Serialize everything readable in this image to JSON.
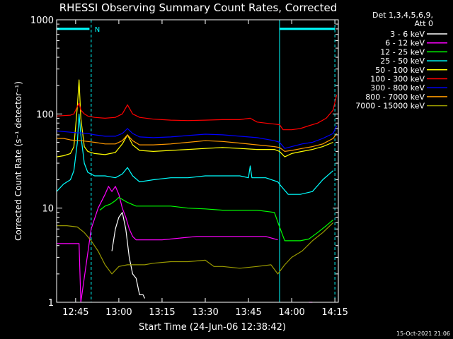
{
  "chart_data": {
    "type": "line",
    "title": "RHESSI Observing Summary Count Rates, Corrected",
    "xlabel": "Start Time (24-Jun-06 12:38:42)",
    "ylabel": "Corrected Count Rate (s⁻¹ detector⁻¹)",
    "footer": "15-Oct-2021 21:06",
    "yscale": "log",
    "ylim": [
      1,
      1000
    ],
    "y_ticks": [
      {
        "v": 1,
        "label": "1"
      },
      {
        "v": 10,
        "label": "10"
      },
      {
        "v": 100,
        "label": "100"
      },
      {
        "v": 1000,
        "label": "1000"
      }
    ],
    "xlim": [
      12.64,
      14.27
    ],
    "x_ticks": [
      {
        "v": 12.75,
        "label": "12:45"
      },
      {
        "v": 13.0,
        "label": "13:00"
      },
      {
        "v": 13.25,
        "label": "13:15"
      },
      {
        "v": 13.5,
        "label": "13:30"
      },
      {
        "v": 13.75,
        "label": "13:45"
      },
      {
        "v": 14.0,
        "label": "14:00"
      },
      {
        "v": 14.25,
        "label": "14:15"
      }
    ],
    "legend_header": [
      "Det 1,3,4,5,6,9,",
      "Att 0"
    ],
    "legend_placement": "right",
    "markers": {
      "dashed_verticals": [
        12.84,
        14.25
      ],
      "solid_verticals": [
        12.64,
        13.93
      ],
      "bar_segments": [
        [
          12.64,
          12.83
        ],
        [
          13.93,
          14.25
        ]
      ],
      "bar_level": 800,
      "bar_label": "N",
      "bar_label_x": 12.86
    },
    "series": [
      {
        "name": "3 - 6 keV",
        "color": "#ffffff",
        "x": [
          12.96,
          12.98,
          13.0,
          13.02,
          13.04,
          13.06,
          13.08,
          13.1,
          13.12,
          13.14,
          13.15
        ],
        "y": [
          3.5,
          6,
          8,
          9,
          6,
          3,
          2,
          1.8,
          1.2,
          1.2,
          1.1
        ]
      },
      {
        "name": "6 - 12 keV",
        "color": "#ff00ff",
        "x": [
          12.64,
          12.72,
          12.77,
          12.78,
          12.84,
          12.88,
          12.92,
          12.94,
          12.96,
          12.98,
          13.0,
          13.02,
          13.04,
          13.06,
          13.08,
          13.1,
          13.15,
          13.25,
          13.35,
          13.45,
          13.55,
          13.65,
          13.75,
          13.85,
          13.92,
          14.0,
          14.1,
          14.12
        ],
        "y": [
          4.2,
          4.2,
          4.2,
          1.0,
          6,
          10,
          14,
          17,
          15,
          17,
          14,
          10,
          8,
          6,
          5,
          4.6,
          4.6,
          4.6,
          4.8,
          5,
          5,
          5,
          5,
          5,
          4.6,
          null,
          1.0,
          1.0
        ]
      },
      {
        "name": "12 - 25 keV",
        "color": "#00ff00",
        "x": [
          12.89,
          12.92,
          12.95,
          12.98,
          13.0,
          13.05,
          13.1,
          13.2,
          13.3,
          13.4,
          13.5,
          13.6,
          13.7,
          13.8,
          13.9,
          13.93,
          13.96,
          14.0,
          14.05,
          14.1,
          14.15,
          14.2,
          14.24
        ],
        "y": [
          9.5,
          10.5,
          11,
          12,
          13,
          11.5,
          10.5,
          10.5,
          10.5,
          10,
          9.8,
          9.5,
          9.5,
          9.5,
          9,
          6.3,
          4.5,
          4.5,
          4.5,
          4.7,
          5.5,
          6.5,
          7.5
        ]
      },
      {
        "name": "25 - 50 keV",
        "color": "#00ffff",
        "x": [
          12.64,
          12.68,
          12.72,
          12.74,
          12.76,
          12.77,
          12.78,
          12.8,
          12.82,
          12.86,
          12.92,
          12.98,
          13.02,
          13.05,
          13.08,
          13.12,
          13.2,
          13.3,
          13.4,
          13.5,
          13.6,
          13.7,
          13.75,
          13.76,
          13.77,
          13.85,
          13.92,
          13.94,
          13.98,
          14.05,
          14.12,
          14.18,
          14.24
        ],
        "y": [
          15,
          18,
          20,
          25,
          50,
          100,
          60,
          30,
          24,
          22,
          22,
          21,
          23,
          27,
          22,
          19,
          20,
          21,
          21,
          22,
          22,
          22,
          21,
          28,
          21,
          21,
          19,
          17,
          14,
          14,
          15,
          20,
          25
        ]
      },
      {
        "name": "50 - 100 keV",
        "color": "#ffff00",
        "x": [
          12.64,
          12.68,
          12.72,
          12.74,
          12.76,
          12.77,
          12.78,
          12.8,
          12.82,
          12.86,
          12.92,
          12.98,
          13.02,
          13.05,
          13.08,
          13.12,
          13.2,
          13.3,
          13.4,
          13.5,
          13.6,
          13.7,
          13.8,
          13.9,
          13.93,
          13.96,
          14.0,
          14.06,
          14.12,
          14.18,
          14.24
        ],
        "y": [
          35,
          36,
          38,
          45,
          120,
          230,
          90,
          45,
          40,
          38,
          37,
          39,
          48,
          60,
          47,
          41,
          40,
          41,
          42,
          43,
          44,
          43,
          42,
          42,
          40,
          35,
          38,
          40,
          42,
          45,
          50
        ]
      },
      {
        "name": "100 - 300 keV",
        "color": "#ff0000",
        "x": [
          12.64,
          12.68,
          12.72,
          12.74,
          12.76,
          12.77,
          12.78,
          12.8,
          12.82,
          12.86,
          12.92,
          12.98,
          13.02,
          13.05,
          13.08,
          13.12,
          13.2,
          13.3,
          13.4,
          13.5,
          13.6,
          13.7,
          13.76,
          13.8,
          13.85,
          13.9,
          13.93,
          13.95,
          14.0,
          14.05,
          14.1,
          14.15,
          14.2,
          14.24,
          14.26
        ],
        "y": [
          95,
          96,
          97,
          100,
          120,
          130,
          110,
          100,
          95,
          92,
          90,
          92,
          100,
          125,
          100,
          92,
          88,
          86,
          85,
          86,
          87,
          87,
          90,
          82,
          80,
          78,
          77,
          68,
          68,
          70,
          75,
          80,
          90,
          110,
          160
        ]
      },
      {
        "name": "300 - 800 keV",
        "color": "#0000ff",
        "x": [
          12.64,
          12.68,
          12.72,
          12.76,
          12.78,
          12.82,
          12.86,
          12.92,
          12.98,
          13.02,
          13.05,
          13.08,
          13.12,
          13.2,
          13.3,
          13.4,
          13.5,
          13.6,
          13.7,
          13.8,
          13.9,
          13.93,
          13.96,
          14.0,
          14.06,
          14.12,
          14.18,
          14.24,
          14.26
        ],
        "y": [
          66,
          65,
          64,
          63,
          63,
          62,
          60,
          58,
          58,
          62,
          70,
          62,
          57,
          56,
          57,
          59,
          61,
          60,
          58,
          56,
          52,
          50,
          43,
          45,
          48,
          50,
          55,
          62,
          75
        ]
      },
      {
        "name": "800 - 7000 keV",
        "color": "#ff9900",
        "x": [
          12.64,
          12.68,
          12.72,
          12.76,
          12.78,
          12.82,
          12.86,
          12.92,
          12.98,
          13.02,
          13.05,
          13.08,
          13.12,
          13.2,
          13.3,
          13.4,
          13.5,
          13.6,
          13.7,
          13.8,
          13.9,
          13.93,
          13.96,
          14.0,
          14.06,
          14.12,
          14.18,
          14.24,
          14.26
        ],
        "y": [
          55,
          55,
          53,
          52,
          52,
          51,
          50,
          48,
          48,
          52,
          60,
          52,
          47,
          47,
          48,
          50,
          52,
          51,
          49,
          47,
          45,
          44,
          40,
          41,
          43,
          45,
          48,
          55,
          62
        ]
      },
      {
        "name": "7000 - 15000 keV",
        "color": "#999900",
        "x": [
          12.64,
          12.7,
          12.76,
          12.8,
          12.84,
          12.88,
          12.92,
          12.96,
          13.0,
          13.05,
          13.1,
          13.15,
          13.2,
          13.3,
          13.4,
          13.5,
          13.55,
          13.6,
          13.7,
          13.8,
          13.88,
          13.92,
          13.96,
          14.0,
          14.06,
          14.12,
          14.18,
          14.24
        ],
        "y": [
          6.5,
          6.5,
          6.3,
          5.5,
          4.5,
          3.5,
          2.5,
          2.0,
          2.4,
          2.5,
          2.5,
          2.5,
          2.6,
          2.7,
          2.7,
          2.8,
          2.4,
          2.4,
          2.3,
          2.4,
          2.5,
          2.0,
          2.5,
          3.0,
          3.5,
          4.5,
          5.5,
          7.0
        ]
      }
    ]
  }
}
